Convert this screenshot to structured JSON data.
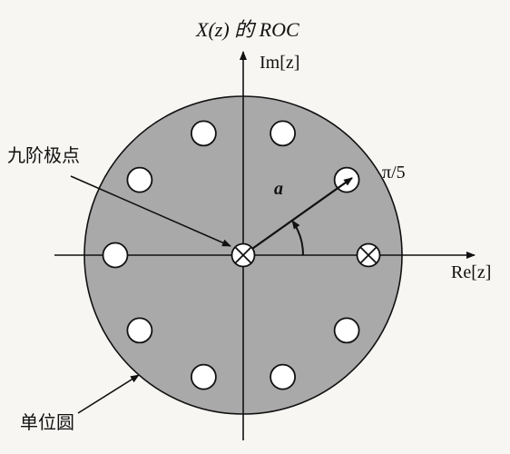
{
  "labels": {
    "roc_title": "X(z) 的 ROC",
    "imag_axis": "Im[z]",
    "real_axis": "Re[z]",
    "ninth_order_pole": "九阶极点",
    "unit_circle": "单位圆",
    "radius": "a",
    "angle": "π/5"
  },
  "zeros_count": 10,
  "zero_angle_step": "π/5",
  "colors": {
    "roc_fill": "#a9a9a9",
    "outline": "#111111",
    "zero_fill": "#ffffff"
  }
}
